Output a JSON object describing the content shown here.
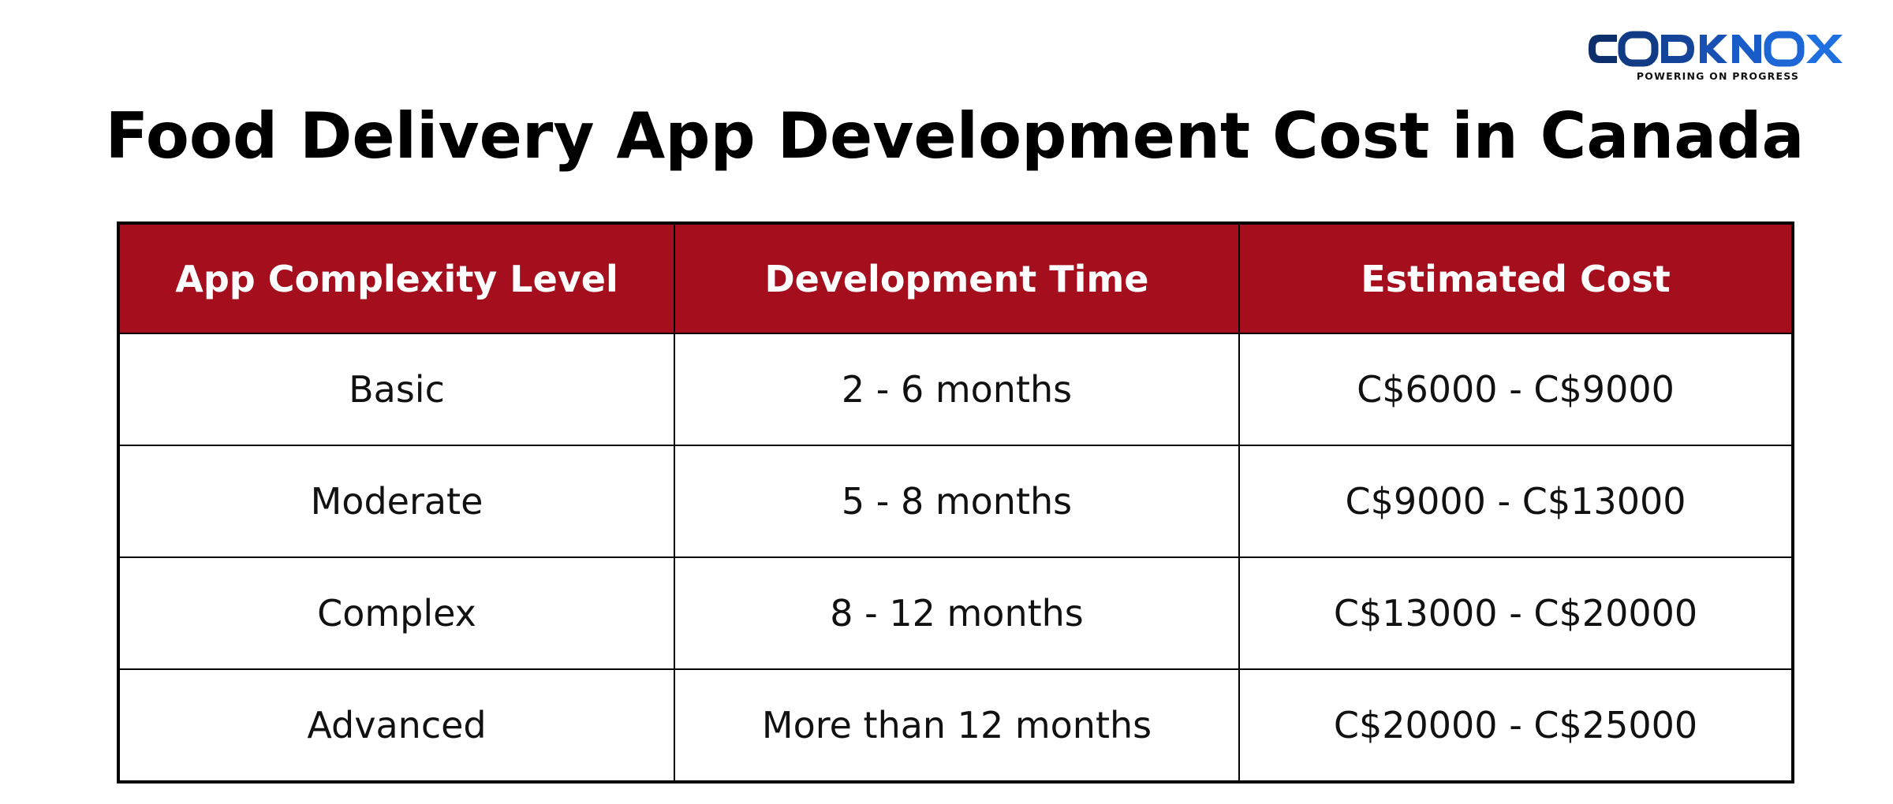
{
  "brand": {
    "name": "CODKNOX",
    "tagline": "POWERING ON PROGRESS",
    "colors": {
      "dark": "#0d2f6b",
      "light": "#1e6fe0"
    }
  },
  "title": "Food Delivery App Development Cost in Canada",
  "table": {
    "header_color": "#a50e1d",
    "headers": [
      "App Complexity Level",
      "Development Time",
      "Estimated Cost"
    ],
    "rows": [
      [
        "Basic",
        "2 - 6 months",
        "C$6000 - C$9000"
      ],
      [
        "Moderate",
        "5 - 8 months",
        "C$9000 - C$13000"
      ],
      [
        "Complex",
        "8 - 12 months",
        "C$13000 - C$20000"
      ],
      [
        "Advanced",
        "More than 12 months",
        "C$20000 - C$25000"
      ]
    ]
  }
}
